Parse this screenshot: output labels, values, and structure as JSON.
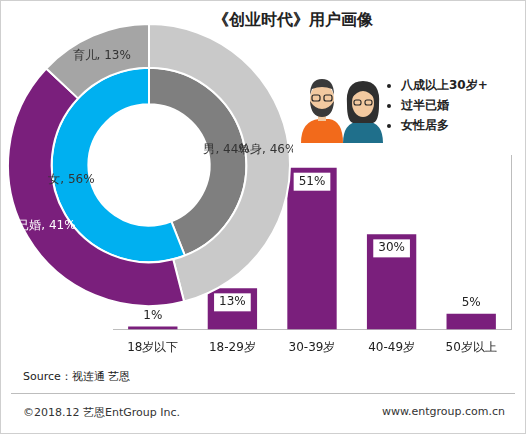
{
  "title": "《创业时代》用户画像",
  "highlights": [
    "八成以上30岁+",
    "过半已婚",
    "女性居多"
  ],
  "source": "Source：视连通 艺恩",
  "footer": {
    "copyright": "©2018.12 艺恩EntGroup Inc.",
    "url": "www.entgroup.com.cn"
  },
  "chart_data": [
    {
      "type": "doughnut",
      "data_labels": true,
      "series": [
        {
          "categories": [
            "单身",
            "已婚",
            "育儿"
          ],
          "values": [
            46,
            41,
            13
          ],
          "colors": [
            "#c9c9c9",
            "#7a1f7c",
            "#a5a5a5"
          ],
          "value_labels": [
            "46%",
            "41%",
            "13%"
          ]
        },
        {
          "categories": [
            "男",
            "女"
          ],
          "values": [
            44,
            56
          ],
          "colors": [
            "#7f7f7f",
            "#00b0f0"
          ],
          "value_labels": [
            "44%",
            "56%"
          ]
        }
      ]
    },
    {
      "type": "bar",
      "categories": [
        "18岁以下",
        "18-29岁",
        "30-39岁",
        "40-49岁",
        "50岁以上"
      ],
      "values": [
        1,
        13,
        51,
        30,
        5
      ],
      "value_labels": [
        "1%",
        "13%",
        "51%",
        "30%",
        "5%"
      ],
      "color": "#7a1f7c",
      "ylim": [
        0,
        55
      ],
      "yticks": [
        0
      ],
      "grid": false,
      "tick_labels": "x",
      "data_labels": true
    }
  ]
}
